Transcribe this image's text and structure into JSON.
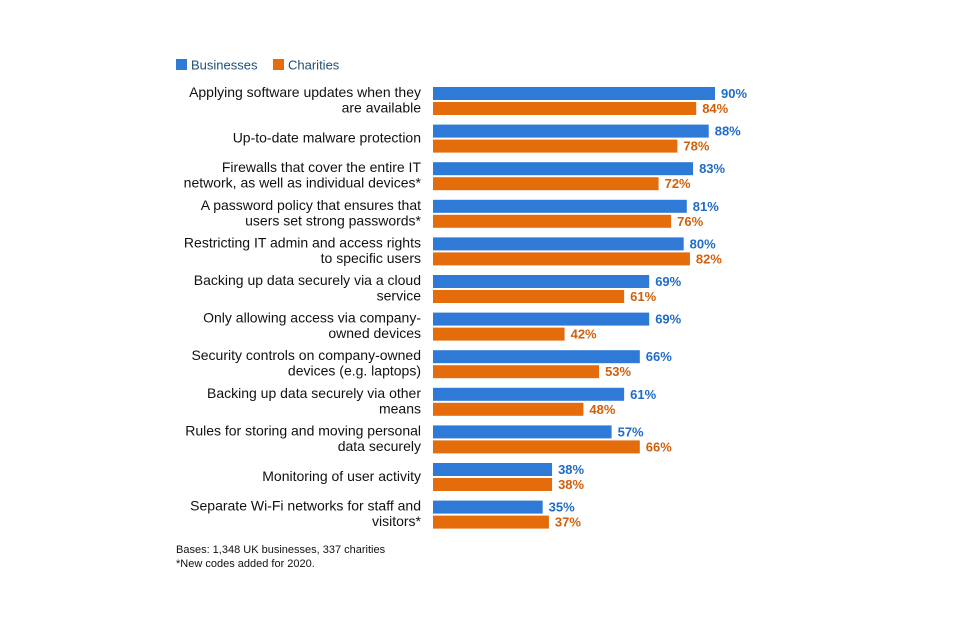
{
  "chart_data": {
    "type": "bar",
    "orientation": "horizontal",
    "title": "",
    "xlabel": "",
    "ylabel": "",
    "xlim": [
      0,
      100
    ],
    "value_suffix": "%",
    "legend_position": "top-left",
    "grid": false,
    "categories": [
      [
        "Applying software updates when they",
        "are available"
      ],
      [
        "Up-to-date malware protection"
      ],
      [
        "Firewalls that cover the entire IT",
        "network, as well as individual devices*"
      ],
      [
        "A password policy that ensures that",
        "users set strong passwords*"
      ],
      [
        "Restricting IT admin and access rights",
        "to specific users"
      ],
      [
        "Backing up data securely via a cloud",
        "service"
      ],
      [
        "Only allowing access via company-",
        "owned devices"
      ],
      [
        "Security controls on company-owned",
        "devices (e.g. laptops)"
      ],
      [
        "Backing up data securely via other",
        "means"
      ],
      [
        "Rules for storing and moving personal",
        "data securely"
      ],
      [
        "Monitoring of user activity"
      ],
      [
        "Separate Wi-Fi networks for staff and",
        "visitors*"
      ]
    ],
    "series": [
      {
        "name": "Businesses",
        "color": "#2F7AD6",
        "label_color": "#1F6BC9",
        "values": [
          90,
          88,
          83,
          81,
          80,
          69,
          69,
          66,
          61,
          57,
          38,
          35
        ]
      },
      {
        "name": "Charities",
        "color": "#E46C0A",
        "label_color": "#D2600A",
        "values": [
          84,
          78,
          72,
          76,
          82,
          61,
          42,
          53,
          48,
          66,
          38,
          37
        ]
      }
    ]
  },
  "footnotes": {
    "bases": "Bases: 1,348 UK businesses, 337 charities",
    "new_codes": "*New codes added for 2020."
  }
}
